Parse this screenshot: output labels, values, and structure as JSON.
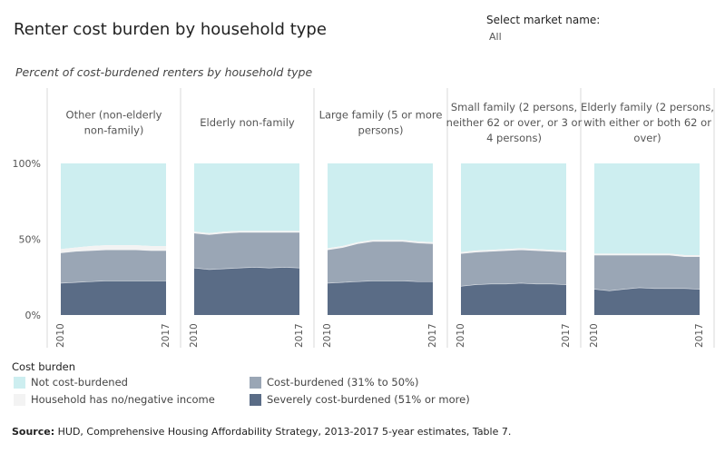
{
  "header": {
    "title": "Renter cost burden by household type",
    "market_label": "Select market name:",
    "market_value": "All"
  },
  "subtitle": "Percent of cost-burdened renters by household type",
  "colors": {
    "not_burdened": "#cdeef0",
    "no_income": "#f3f3f3",
    "cost_burdened": "#9aa6b5",
    "severe": "#5a6c86"
  },
  "legend": {
    "title": "Cost burden",
    "items": [
      {
        "label": "Not cost-burdened",
        "color": "#cdeef0"
      },
      {
        "label": "Household has no/negative income",
        "color": "#f3f3f3"
      },
      {
        "label": "Cost-burdened (31% to 50%)",
        "color": "#9aa6b5"
      },
      {
        "label": "Severely cost-burdened (51% or more)",
        "color": "#5a6c86"
      }
    ]
  },
  "source": {
    "prefix": "Source:",
    "text": " HUD, Comprehensive Housing Affordability Strategy, 2013-2017 5-year estimates, Table 7."
  },
  "chart_data": {
    "type": "area",
    "stacked": true,
    "x": [
      "2010",
      "2011",
      "2012",
      "2013",
      "2014",
      "2015",
      "2016",
      "2017"
    ],
    "x_tick_labels": [
      "2010",
      "2017"
    ],
    "y_ticks": [
      0,
      50,
      100
    ],
    "y_tick_labels": [
      "0%",
      "50%",
      "100%"
    ],
    "ylim": [
      0,
      100
    ],
    "panels": [
      {
        "name": "Other (non-elderly non-family)",
        "label_lines": [
          "Other (non-elderly",
          "non-family)"
        ],
        "series": {
          "severe": [
            21,
            21.5,
            22,
            22.5,
            22.5,
            22.5,
            22.5,
            22.5
          ],
          "cost_burdened": [
            20,
            20.5,
            20.5,
            20.5,
            20.5,
            20.5,
            20,
            20
          ],
          "no_income": [
            2.5,
            2.5,
            3,
            3,
            3,
            3,
            3,
            3
          ]
        }
      },
      {
        "name": "Elderly non-family",
        "label_lines": [
          "Elderly non-family"
        ],
        "series": {
          "severe": [
            31,
            30,
            30.5,
            31,
            31.5,
            31,
            31.5,
            31
          ],
          "cost_burdened": [
            23,
            23,
            23.5,
            23.5,
            23,
            23.5,
            23,
            23.5
          ],
          "no_income": [
            1,
            1,
            1,
            1,
            1,
            1,
            1,
            1
          ]
        }
      },
      {
        "name": "Large family (5 or more persons)",
        "label_lines": [
          "Large family (5 or more",
          "persons)"
        ],
        "series": {
          "severe": [
            21,
            21.5,
            22,
            22.5,
            22.5,
            22.5,
            22,
            22
          ],
          "cost_burdened": [
            22,
            23,
            25,
            26,
            26,
            26,
            25.5,
            25
          ],
          "no_income": [
            1,
            1,
            1,
            1,
            1,
            1,
            1,
            1
          ]
        }
      },
      {
        "name": "Small family (2 persons, neither 62 or over, or 3 or 4 persons)",
        "label_lines": [
          "Small family (2 persons,",
          "neither 62 or over, or 3 or",
          "4 persons)"
        ],
        "series": {
          "severe": [
            19,
            20,
            20.5,
            20.5,
            21,
            20.5,
            20.5,
            20
          ],
          "cost_burdened": [
            21.5,
            21.5,
            21.5,
            22,
            22,
            22,
            21.5,
            21.5
          ],
          "no_income": [
            1,
            1,
            1,
            1,
            1,
            1,
            1,
            1
          ]
        }
      },
      {
        "name": "Elderly family (2 persons, with either or both 62 or over)",
        "label_lines": [
          "Elderly family (2 persons,",
          "with either or both 62 or",
          "over)"
        ],
        "series": {
          "severe": [
            17,
            16,
            17,
            18,
            17.5,
            17.5,
            17.5,
            17
          ],
          "cost_burdened": [
            22.5,
            23.5,
            22.5,
            21.5,
            22,
            22,
            21,
            21.5
          ],
          "no_income": [
            1,
            1,
            1,
            1,
            1,
            1,
            1,
            1
          ]
        }
      }
    ]
  }
}
